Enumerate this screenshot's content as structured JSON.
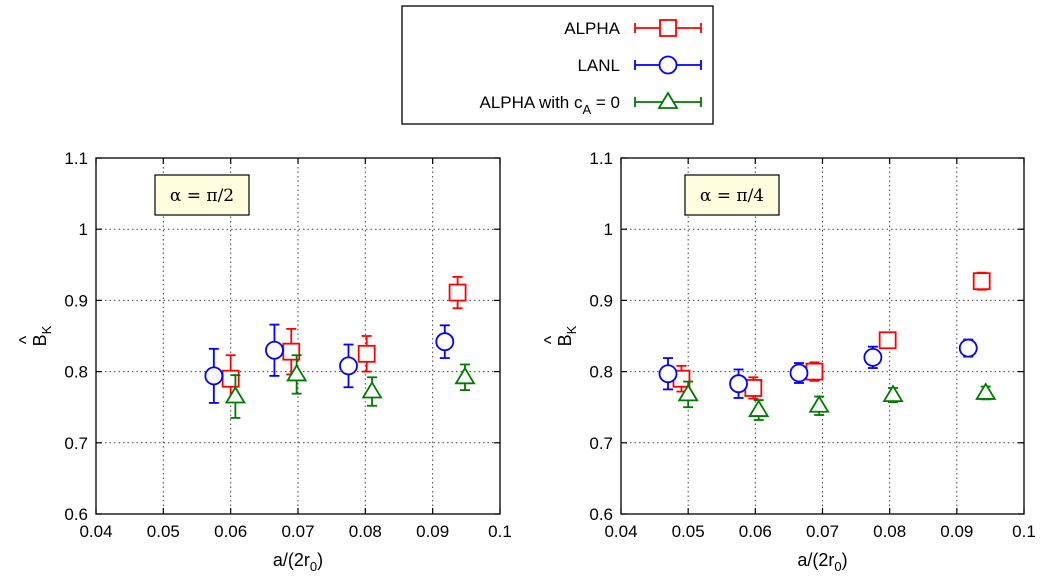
{
  "legend": {
    "entries": [
      {
        "label": "ALPHA",
        "color": "#ff0000",
        "marker": "square"
      },
      {
        "label": "LANL",
        "color": "#0000ff",
        "marker": "circle"
      },
      {
        "label_main": "ALPHA with c",
        "label_sub": "A",
        "label_tail": " = 0",
        "color": "#007a00",
        "marker": "triangle"
      }
    ]
  },
  "chart_data": [
    {
      "type": "scatter",
      "annotation": "α = π/2",
      "xlabel_main": "a/(2r",
      "xlabel_sub": "0",
      "xlabel_tail": ")",
      "ylabel_main": "B",
      "ylabel_sub": "K",
      "ylabel_hat": "^",
      "xlim": [
        0.04,
        0.1
      ],
      "ylim": [
        0.6,
        1.1
      ],
      "xticks": [
        "0.04",
        "0.05",
        "0.06",
        "0.07",
        "0.08",
        "0.09",
        "0.1"
      ],
      "yticks": [
        "0.6",
        "0.7",
        "0.8",
        "0.9",
        "1",
        "1.1"
      ],
      "grid": true,
      "series": [
        {
          "key": "alpha",
          "color": "#ff0000",
          "marker": "square",
          "points": [
            {
              "x": 0.06,
              "y": 0.79,
              "err": 0.033
            },
            {
              "x": 0.069,
              "y": 0.828,
              "err": 0.032
            },
            {
              "x": 0.0802,
              "y": 0.825,
              "err": 0.025
            },
            {
              "x": 0.0937,
              "y": 0.911,
              "err": 0.022
            }
          ]
        },
        {
          "key": "lanl",
          "color": "#0000ff",
          "marker": "circle",
          "points": [
            {
              "x": 0.0575,
              "y": 0.794,
              "err": 0.038
            },
            {
              "x": 0.0665,
              "y": 0.83,
              "err": 0.036
            },
            {
              "x": 0.0775,
              "y": 0.808,
              "err": 0.03
            },
            {
              "x": 0.0918,
              "y": 0.842,
              "err": 0.023
            }
          ]
        },
        {
          "key": "alpha_ca0",
          "color": "#007a00",
          "marker": "triangle",
          "points": [
            {
              "x": 0.0607,
              "y": 0.765,
              "err": 0.03
            },
            {
              "x": 0.0698,
              "y": 0.796,
              "err": 0.027
            },
            {
              "x": 0.081,
              "y": 0.772,
              "err": 0.02
            },
            {
              "x": 0.0948,
              "y": 0.792,
              "err": 0.018
            }
          ]
        }
      ]
    },
    {
      "type": "scatter",
      "annotation": "α = π/4",
      "xlabel_main": "a/(2r",
      "xlabel_sub": "0",
      "xlabel_tail": ")",
      "ylabel_main": "B",
      "ylabel_sub": "K",
      "ylabel_hat": "^",
      "xlim": [
        0.04,
        0.1
      ],
      "ylim": [
        0.6,
        1.1
      ],
      "xticks": [
        "0.04",
        "0.05",
        "0.06",
        "0.07",
        "0.08",
        "0.09",
        "0.1"
      ],
      "yticks": [
        "0.6",
        "0.7",
        "0.8",
        "0.9",
        "1",
        "1.1"
      ],
      "grid": true,
      "series": [
        {
          "key": "alpha",
          "color": "#ff0000",
          "marker": "square",
          "points": [
            {
              "x": 0.049,
              "y": 0.79,
              "err": 0.018
            },
            {
              "x": 0.0597,
              "y": 0.777,
              "err": 0.015
            },
            {
              "x": 0.0688,
              "y": 0.8,
              "err": 0.013
            },
            {
              "x": 0.0797,
              "y": 0.844,
              "err": 0.011
            },
            {
              "x": 0.0937,
              "y": 0.927,
              "err": 0.012
            }
          ]
        },
        {
          "key": "lanl",
          "color": "#0000ff",
          "marker": "circle",
          "points": [
            {
              "x": 0.047,
              "y": 0.797,
              "err": 0.022
            },
            {
              "x": 0.0575,
              "y": 0.783,
              "err": 0.02
            },
            {
              "x": 0.0665,
              "y": 0.798,
              "err": 0.014
            },
            {
              "x": 0.0775,
              "y": 0.82,
              "err": 0.015
            },
            {
              "x": 0.0917,
              "y": 0.833,
              "err": 0.012
            }
          ]
        },
        {
          "key": "alpha_ca0",
          "color": "#007a00",
          "marker": "triangle",
          "points": [
            {
              "x": 0.05,
              "y": 0.768,
              "err": 0.018
            },
            {
              "x": 0.0605,
              "y": 0.746,
              "err": 0.014
            },
            {
              "x": 0.0695,
              "y": 0.752,
              "err": 0.013
            },
            {
              "x": 0.0805,
              "y": 0.767,
              "err": 0.01
            },
            {
              "x": 0.0943,
              "y": 0.77,
              "err": 0.009
            }
          ]
        }
      ]
    }
  ]
}
